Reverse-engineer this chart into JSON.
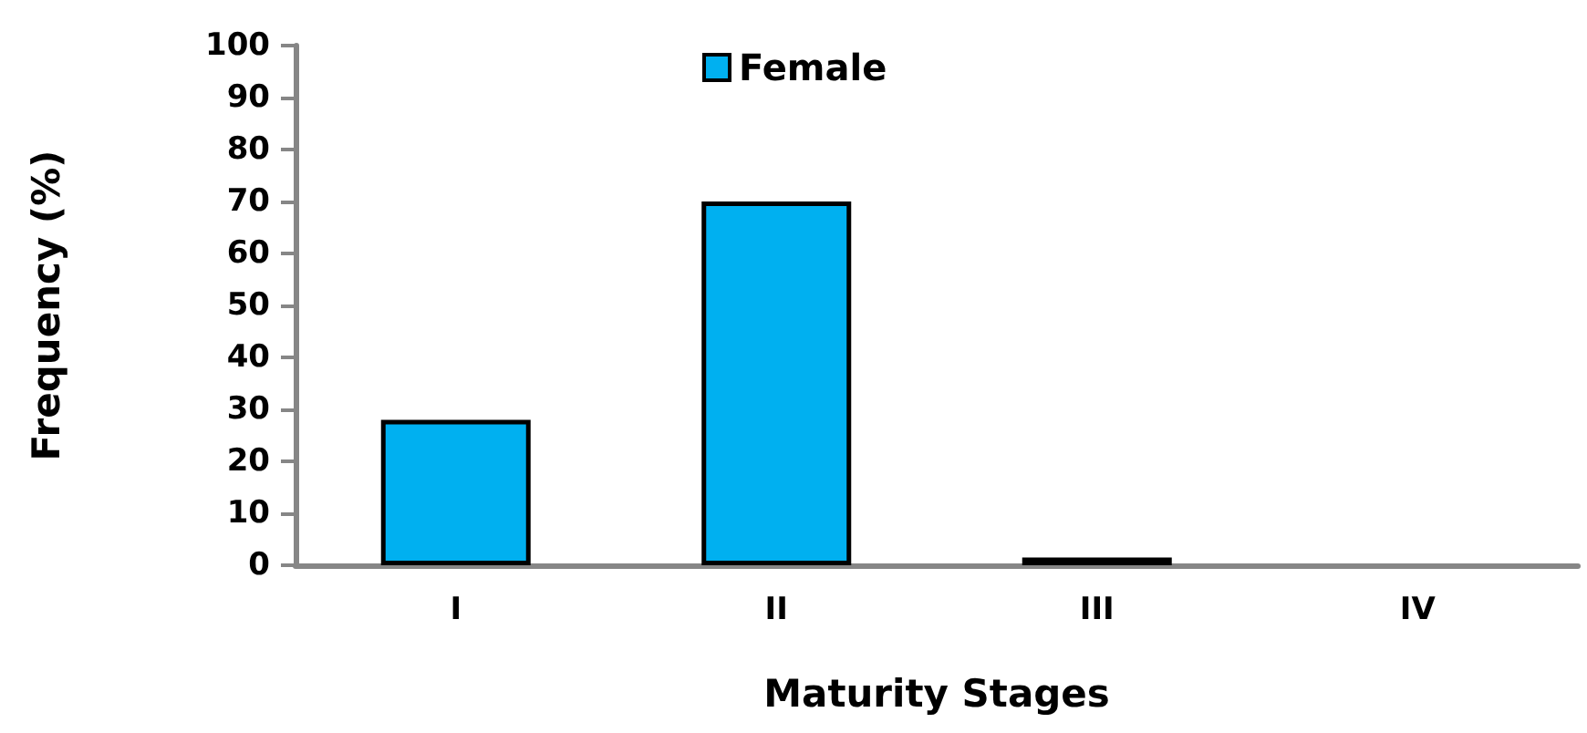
{
  "chart_data": {
    "type": "bar",
    "xlabel": "Maturity Stages",
    "ylabel": "Frequency (%)",
    "categories": [
      "I",
      "II",
      "III",
      "IV"
    ],
    "series": [
      {
        "name": "Female",
        "color": "#00b0f0",
        "values": [
          28,
          70,
          1.5,
          null
        ]
      }
    ],
    "ylim": [
      0,
      100
    ],
    "yticks": [
      0,
      10,
      20,
      30,
      40,
      50,
      60,
      70,
      80,
      90,
      100
    ],
    "grid": false,
    "legend": "top"
  }
}
